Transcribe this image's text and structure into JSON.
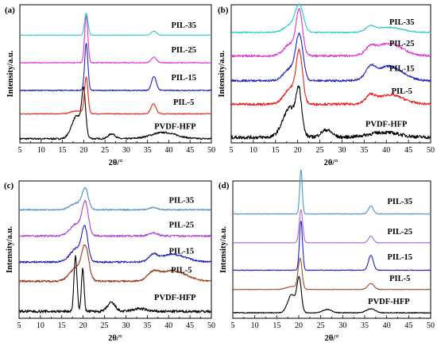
{
  "chart_data": [
    {
      "type": "line",
      "panel_label": "(a)",
      "xlabel": "2θ/°",
      "ylabel": "Intensity/a.u.",
      "xlim": [
        5,
        50
      ],
      "xticks": [
        "5",
        "10",
        "15",
        "20",
        "25",
        "30",
        "35",
        "40",
        "45",
        "50"
      ],
      "yticks_shown": false,
      "series": [
        {
          "name": "PVDF-HFP",
          "color": "#000000",
          "peaks": [
            [
              18.4,
              0.55,
              1.2
            ],
            [
              20.0,
              1.0,
              0.45
            ],
            [
              26.6,
              0.12,
              0.8
            ],
            [
              38.8,
              0.15,
              3.0
            ]
          ],
          "noise": 0.02
        },
        {
          "name": "PIL-5",
          "color": "#e8211b",
          "peaks": [
            [
              20.6,
              1.0,
              0.4
            ],
            [
              18.5,
              0.08,
              1.5
            ],
            [
              36.4,
              0.28,
              0.6
            ]
          ],
          "noise": 0.01
        },
        {
          "name": "PIL-15",
          "color": "#2222c0",
          "peaks": [
            [
              20.6,
              1.0,
              0.38
            ],
            [
              36.5,
              0.3,
              0.55
            ]
          ],
          "noise": 0.01
        },
        {
          "name": "PIL-25",
          "color": "#e033d8",
          "peaks": [
            [
              20.6,
              1.0,
              0.38
            ],
            [
              36.5,
              0.12,
              0.6
            ]
          ],
          "noise": 0.008
        },
        {
          "name": "PIL-35",
          "color": "#2ec8c8",
          "peaks": [
            [
              20.6,
              1.0,
              0.4
            ],
            [
              36.5,
              0.18,
              0.6
            ]
          ],
          "noise": 0.008
        }
      ]
    },
    {
      "type": "line",
      "panel_label": "(b)",
      "xlabel": "2θ/°",
      "ylabel": "Intensity/a.u.",
      "xlim": [
        5,
        50
      ],
      "xticks": [
        "5",
        "10",
        "15",
        "20",
        "25",
        "30",
        "35",
        "40",
        "45",
        "50"
      ],
      "yticks_shown": false,
      "series": [
        {
          "name": "PVDF-HFP",
          "color": "#000000",
          "peaks": [
            [
              18.3,
              0.6,
              1.6
            ],
            [
              20.3,
              0.75,
              0.6
            ],
            [
              26.5,
              0.15,
              1.2
            ],
            [
              39.5,
              0.1,
              3.5
            ]
          ],
          "noise": 0.035
        },
        {
          "name": "PIL-5",
          "color": "#e8211b",
          "peaks": [
            [
              20.4,
              1.0,
              0.7
            ],
            [
              18.5,
              0.35,
              1.5
            ],
            [
              36.4,
              0.15,
              1.0
            ],
            [
              40.8,
              0.2,
              3.0
            ]
          ],
          "noise": 0.025
        },
        {
          "name": "PIL-15",
          "color": "#2222c0",
          "peaks": [
            [
              20.4,
              1.0,
              0.8
            ],
            [
              18.5,
              0.3,
              1.5
            ],
            [
              36.4,
              0.25,
              1.0
            ],
            [
              40.5,
              0.35,
              3.0
            ]
          ],
          "noise": 0.025
        },
        {
          "name": "PIL-25",
          "color": "#e033d8",
          "peaks": [
            [
              20.4,
              1.0,
              0.7
            ],
            [
              18.5,
              0.3,
              1.5
            ],
            [
              36.4,
              0.15,
              1.0
            ],
            [
              40.5,
              0.3,
              3.0
            ]
          ],
          "noise": 0.025
        },
        {
          "name": "PIL-35",
          "color": "#2ec8c8",
          "peaks": [
            [
              20.4,
              1.0,
              0.9
            ],
            [
              18.5,
              0.3,
              1.5
            ],
            [
              36.4,
              0.2,
              1.0
            ],
            [
              40.5,
              0.2,
              3.0
            ]
          ],
          "noise": 0.025
        }
      ]
    },
    {
      "type": "line",
      "panel_label": "(c)",
      "xlabel": "2θ/°",
      "ylabel": "Intensity/a.u.",
      "xlim": [
        5,
        50
      ],
      "xticks": [
        "5",
        "10",
        "15",
        "20",
        "25",
        "30",
        "35",
        "40",
        "45",
        "50"
      ],
      "yticks_shown": false,
      "series": [
        {
          "name": "PVDF-HFP",
          "color": "#000000",
          "peaks": [
            [
              18.2,
              1.0,
              0.35
            ],
            [
              19.9,
              0.8,
              0.3
            ],
            [
              26.6,
              0.16,
              0.9
            ],
            [
              33.2,
              0.05,
              1.5
            ]
          ],
          "noise": 0.025
        },
        {
          "name": "PIL-5",
          "color": "#9c3a1e",
          "peaks": [
            [
              20.5,
              1.0,
              0.8
            ],
            [
              18.5,
              0.45,
              1.6
            ],
            [
              36.4,
              0.22,
              1.2
            ],
            [
              40.8,
              0.35,
              3.2
            ]
          ],
          "noise": 0.03
        },
        {
          "name": "PIL-15",
          "color": "#2222c0",
          "peaks": [
            [
              20.4,
              1.0,
              0.7
            ],
            [
              18.5,
              0.45,
              1.5
            ],
            [
              36.4,
              0.2,
              1.0
            ],
            [
              41.0,
              0.25,
              3.0
            ]
          ],
          "noise": 0.03
        },
        {
          "name": "PIL-25",
          "color": "#b045d6",
          "peaks": [
            [
              20.5,
              1.0,
              0.7
            ],
            [
              18.5,
              0.4,
              1.5
            ],
            [
              36.4,
              0.1,
              1.0
            ]
          ],
          "noise": 0.03
        },
        {
          "name": "PIL-35",
          "color": "#4f8fc7",
          "peaks": [
            [
              20.5,
              1.0,
              0.7
            ],
            [
              18.5,
              0.35,
              1.5
            ],
            [
              36.4,
              0.12,
              1.0
            ]
          ],
          "noise": 0.03
        }
      ]
    },
    {
      "type": "line",
      "panel_label": "(d)",
      "xlabel": "2θ/°",
      "ylabel": "Intensity/a.u.",
      "xlim": [
        5,
        50
      ],
      "xticks": [
        "5",
        "10",
        "15",
        "20",
        "25",
        "30",
        "35",
        "40",
        "45",
        "50"
      ],
      "yticks_shown": false,
      "series": [
        {
          "name": "PVDF-HFP",
          "color": "#000000",
          "peaks": [
            [
              18.4,
              0.55,
              0.9
            ],
            [
              20.1,
              1.0,
              0.5
            ],
            [
              26.5,
              0.1,
              1.0
            ],
            [
              36.4,
              0.12,
              1.0
            ]
          ],
          "noise": 0.012
        },
        {
          "name": "PIL-5",
          "color": "#a0522d",
          "peaks": [
            [
              20.3,
              1.0,
              0.45
            ],
            [
              18.5,
              0.1,
              1.2
            ],
            [
              36.4,
              0.2,
              0.7
            ]
          ],
          "noise": 0.008
        },
        {
          "name": "PIL-15",
          "color": "#2222c0",
          "peaks": [
            [
              20.5,
              1.0,
              0.35
            ],
            [
              36.4,
              0.3,
              0.55
            ]
          ],
          "noise": 0.006
        },
        {
          "name": "PIL-25",
          "color": "#a86cd9",
          "peaks": [
            [
              20.5,
              1.0,
              0.4
            ],
            [
              36.4,
              0.2,
              0.55
            ]
          ],
          "noise": 0.006
        },
        {
          "name": "PIL-35",
          "color": "#4f95c9",
          "peaks": [
            [
              20.5,
              1.0,
              0.3
            ],
            [
              36.4,
              0.18,
              0.55
            ]
          ],
          "noise": 0.006
        }
      ]
    }
  ]
}
